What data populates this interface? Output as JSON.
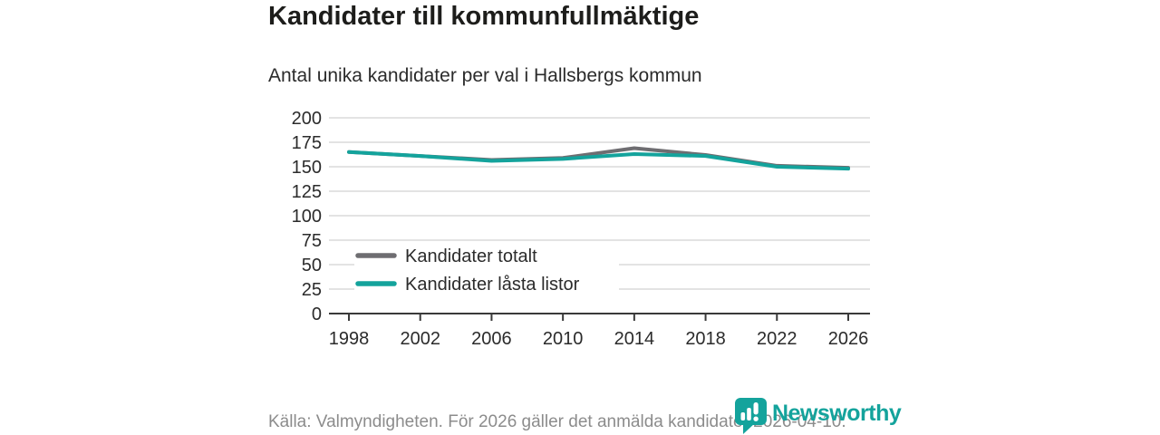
{
  "header": {
    "title": "Kandidater till kommunfullmäktige",
    "subtitle": "Antal unika kandidater per val i Hallsbergs kommun"
  },
  "chart_data": {
    "type": "line",
    "x": [
      1998,
      2002,
      2006,
      2010,
      2014,
      2018,
      2022,
      2026
    ],
    "series": [
      {
        "name": "Kandidater totalt",
        "color": "#6e6d71",
        "values": [
          165,
          161,
          157,
          159,
          169,
          162,
          151,
          149
        ]
      },
      {
        "name": "Kandidater låsta listor",
        "color": "#14a39c",
        "values": [
          165,
          161,
          156,
          158,
          163,
          161,
          150,
          148
        ]
      }
    ],
    "title": "Kandidater till kommunfullmäktige",
    "subtitle": "Antal unika kandidater per val i Hallsbergs kommun",
    "xlabel": "",
    "ylabel": "",
    "ylim": [
      0,
      200
    ],
    "yticks": [
      0,
      25,
      50,
      75,
      100,
      125,
      150,
      175,
      200
    ],
    "xticks": [
      1998,
      2002,
      2006,
      2010,
      2014,
      2018,
      2022,
      2026
    ],
    "grid": true,
    "legend_position": "inside-bottom-left"
  },
  "footer": {
    "source_text": "Källa: Valmyndigheten. För 2026 gäller det anmälda kandidater 2026-04-10.",
    "brand_name": "Newsworthy"
  },
  "colors": {
    "accent_teal": "#14a39c",
    "line_gray": "#6e6d71",
    "grid": "#e3e3e3",
    "axis": "#3a3a3a",
    "tick_text": "#2b2b2b",
    "footer_text": "#8c8c8c",
    "title_text": "#1d1d1b"
  }
}
